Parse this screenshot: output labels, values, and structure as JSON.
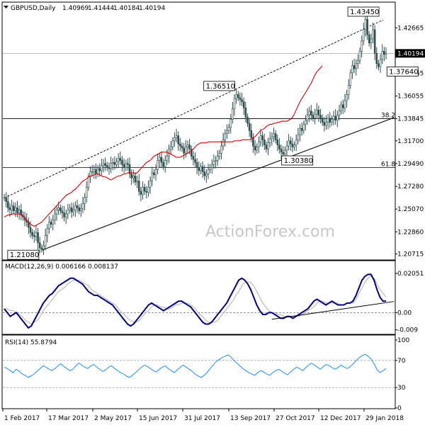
{
  "chart_data": [
    {
      "type": "candlestick",
      "title": "GBPUSD,Daily",
      "ohlc": [
        "1.40969",
        "1.41444",
        "1.40184",
        "1.40194"
      ],
      "last_price": 1.40194,
      "last_price_label": "1.40194",
      "watermark": "ActionForex.com",
      "ylim": [
        1.202,
        1.44
      ],
      "y_ticks": [
        1.4267,
        1.3826,
        1.3605,
        1.3385,
        1.317,
        1.2949,
        1.2727,
        1.2507,
        1.2286,
        1.2072
      ],
      "y_tick_labels": [
        "1.42665",
        "1.38265",
        "1.36055",
        "1.33845",
        "1.31700",
        "1.29490",
        "1.27280",
        "1.25070",
        "1.22860",
        "1.20715"
      ],
      "x_tick_labels": [
        "1 Feb 2017",
        "17 Mar 2017",
        "2 May 2017",
        "15 Jun 2017",
        "31 Jul 2017",
        "13 Sep 2017",
        "27 Oct 2017",
        "12 Dec 2017",
        "29 Jan 2018"
      ],
      "close_series": [
        1.262,
        1.258,
        1.252,
        1.25,
        1.254,
        1.249,
        1.252,
        1.247,
        1.25,
        1.245,
        1.243,
        1.24,
        1.238,
        1.233,
        1.228,
        1.225,
        1.224,
        1.228,
        1.218,
        1.213,
        1.212,
        1.215,
        1.225,
        1.232,
        1.238,
        1.236,
        1.24,
        1.246,
        1.25,
        1.252,
        1.249,
        1.247,
        1.243,
        1.246,
        1.25,
        1.252,
        1.248,
        1.25,
        1.254,
        1.252,
        1.249,
        1.251,
        1.256,
        1.262,
        1.272,
        1.282,
        1.287,
        1.287,
        1.289,
        1.285,
        1.29,
        1.288,
        1.293,
        1.295,
        1.293,
        1.291,
        1.29,
        1.295,
        1.296,
        1.294,
        1.297,
        1.3,
        1.298,
        1.294,
        1.291,
        1.295,
        1.294,
        1.285,
        1.281,
        1.283,
        1.277,
        1.278,
        1.268,
        1.265,
        1.272,
        1.268,
        1.267,
        1.272,
        1.278,
        1.286,
        1.284,
        1.289,
        1.298,
        1.301,
        1.296,
        1.292,
        1.298,
        1.302,
        1.309,
        1.311,
        1.317,
        1.32,
        1.322,
        1.314,
        1.312,
        1.31,
        1.305,
        1.311,
        1.313,
        1.309,
        1.302,
        1.299,
        1.296,
        1.291,
        1.288,
        1.292,
        1.287,
        1.283,
        1.285,
        1.289,
        1.291,
        1.294,
        1.297,
        1.298,
        1.302,
        1.305,
        1.312,
        1.318,
        1.324,
        1.327,
        1.33,
        1.338,
        1.348,
        1.358,
        1.362,
        1.359,
        1.357,
        1.355,
        1.349,
        1.34,
        1.334,
        1.327,
        1.32,
        1.312,
        1.308,
        1.311,
        1.316,
        1.322,
        1.318,
        1.313,
        1.309,
        1.315,
        1.319,
        1.321,
        1.324,
        1.318,
        1.313,
        1.309,
        1.306,
        1.304,
        1.308,
        1.312,
        1.317,
        1.314,
        1.311,
        1.313,
        1.318,
        1.323,
        1.329,
        1.327,
        1.333,
        1.337,
        1.342,
        1.346,
        1.342,
        1.339,
        1.343,
        1.347,
        1.342,
        1.339,
        1.335,
        1.332,
        1.335,
        1.339,
        1.335,
        1.338,
        1.341,
        1.337,
        1.342,
        1.346,
        1.352,
        1.349,
        1.356,
        1.362,
        1.371,
        1.383,
        1.39,
        1.387,
        1.392,
        1.395,
        1.404,
        1.414,
        1.425,
        1.435,
        1.42,
        1.412,
        1.416,
        1.425,
        1.402,
        1.392,
        1.389,
        1.396,
        1.404,
        1.401,
        1.402
      ],
      "ma_series": [
        1.243,
        1.244,
        1.245,
        1.245,
        1.246,
        1.246,
        1.246,
        1.246,
        1.246,
        1.245,
        1.244,
        1.242,
        1.24,
        1.238,
        1.236,
        1.235,
        1.234,
        1.235,
        1.236,
        1.237,
        1.238,
        1.24,
        1.242,
        1.244,
        1.246,
        1.248,
        1.25,
        1.252,
        1.254,
        1.256,
        1.258,
        1.26,
        1.262,
        1.264,
        1.265,
        1.266,
        1.267,
        1.269,
        1.27,
        1.272,
        1.274,
        1.276,
        1.278,
        1.279,
        1.28,
        1.282,
        1.283,
        1.283,
        1.284,
        1.285,
        1.285,
        1.284,
        1.283,
        1.282,
        1.282,
        1.281,
        1.28,
        1.279,
        1.28,
        1.281,
        1.282,
        1.283,
        1.283,
        1.284,
        1.285,
        1.285,
        1.286,
        1.286,
        1.286,
        1.286,
        1.285,
        1.286,
        1.288,
        1.29,
        1.292,
        1.294,
        1.296,
        1.297,
        1.298,
        1.3,
        1.302,
        1.303,
        1.304,
        1.305,
        1.306,
        1.306,
        1.306,
        1.306,
        1.305,
        1.304,
        1.303,
        1.302,
        1.301,
        1.301,
        1.301,
        1.302,
        1.303,
        1.304,
        1.305,
        1.306,
        1.307,
        1.309,
        1.311,
        1.313,
        1.314,
        1.315,
        1.315,
        1.315,
        1.315,
        1.316,
        1.316,
        1.316,
        1.316,
        1.316,
        1.316,
        1.316,
        1.316,
        1.316,
        1.316,
        1.316,
        1.316,
        1.316,
        1.316,
        1.317,
        1.317,
        1.317,
        1.317,
        1.318,
        1.318,
        1.318,
        1.318,
        1.318,
        1.319,
        1.32,
        1.321,
        1.323,
        1.325,
        1.327,
        1.328,
        1.329,
        1.331,
        1.332,
        1.333,
        1.333,
        1.334,
        1.334,
        1.335,
        1.335,
        1.336,
        1.336,
        1.336,
        1.336,
        1.337,
        1.338,
        1.34,
        1.343,
        1.347,
        1.351,
        1.355,
        1.358,
        1.361,
        1.364,
        1.367,
        1.37,
        1.373,
        1.377,
        1.381,
        1.384,
        1.386,
        1.388,
        1.39
      ],
      "annotations": [
        {
          "label": "1.21080",
          "value": 1.2108
        },
        {
          "label": "1.36510",
          "value": 1.3651
        },
        {
          "label": "1.30380",
          "value": 1.3038
        },
        {
          "label": "1.43450",
          "value": 1.4345
        },
        {
          "label": "1.37640",
          "value": 1.3764
        }
      ],
      "fib_levels": [
        {
          "label": "38.2",
          "value": 1.3385
        },
        {
          "label": "61.8",
          "value": 1.291
        }
      ]
    },
    {
      "type": "line",
      "title": "MACD(12,26,9) 0.006166 0.008137",
      "ylim": [
        -0.011,
        0.022
      ],
      "y_ticks": [
        0.02051,
        0.0,
        -0.009
      ],
      "y_tick_labels": [
        "0.02051",
        "0.00",
        "-0.009"
      ],
      "macd": [
        0.002,
        0.0,
        -0.002,
        -0.001,
        0.0,
        -0.002,
        -0.004,
        -0.006,
        -0.008,
        -0.007,
        -0.004,
        -0.001,
        0.002,
        0.005,
        0.007,
        0.009,
        0.01,
        0.012,
        0.014,
        0.015,
        0.016,
        0.017,
        0.018,
        0.018,
        0.017,
        0.016,
        0.015,
        0.013,
        0.011,
        0.01,
        0.009,
        0.009,
        0.008,
        0.007,
        0.006,
        0.005,
        0.004,
        0.002,
        0.0,
        -0.002,
        -0.004,
        -0.006,
        -0.007,
        -0.006,
        -0.004,
        -0.002,
        0.0,
        0.002,
        0.004,
        0.005,
        0.004,
        0.003,
        0.002,
        0.001,
        0.002,
        0.003,
        0.004,
        0.005,
        0.006,
        0.006,
        0.005,
        0.004,
        0.003,
        0.001,
        -0.001,
        -0.003,
        -0.005,
        -0.006,
        -0.006,
        -0.005,
        -0.003,
        -0.001,
        0.001,
        0.003,
        0.005,
        0.008,
        0.011,
        0.014,
        0.017,
        0.018,
        0.017,
        0.015,
        0.012,
        0.008,
        0.004,
        0.001,
        -0.001,
        -0.001,
        0.0,
        0.0,
        -0.001,
        -0.002,
        -0.003,
        -0.003,
        -0.002,
        -0.002,
        -0.003,
        -0.002,
        -0.001,
        0.0,
        0.001,
        0.002,
        0.004,
        0.006,
        0.007,
        0.006,
        0.005,
        0.004,
        0.005,
        0.006,
        0.005,
        0.004,
        0.004,
        0.004,
        0.005,
        0.005,
        0.006,
        0.009,
        0.013,
        0.017,
        0.019,
        0.02,
        0.02,
        0.017,
        0.012,
        0.008,
        0.006,
        0.006
      ],
      "signal": [
        0.002,
        0.002,
        0.001,
        0.001,
        0.0,
        -0.001,
        -0.002,
        -0.004,
        -0.005,
        -0.006,
        -0.005,
        -0.004,
        -0.002,
        0.001,
        0.003,
        0.005,
        0.007,
        0.009,
        0.011,
        0.012,
        0.013,
        0.015,
        0.016,
        0.017,
        0.017,
        0.017,
        0.016,
        0.015,
        0.014,
        0.012,
        0.011,
        0.01,
        0.009,
        0.008,
        0.007,
        0.006,
        0.005,
        0.004,
        0.002,
        0.0,
        -0.001,
        -0.003,
        -0.004,
        -0.005,
        -0.005,
        -0.004,
        -0.002,
        0.0,
        0.001,
        0.003,
        0.004,
        0.004,
        0.003,
        0.003,
        0.002,
        0.002,
        0.003,
        0.004,
        0.004,
        0.005,
        0.005,
        0.005,
        0.004,
        0.003,
        0.001,
        -0.001,
        -0.002,
        -0.004,
        -0.005,
        -0.005,
        -0.005,
        -0.004,
        -0.002,
        0.0,
        0.002,
        0.004,
        0.006,
        0.009,
        0.011,
        0.014,
        0.016,
        0.016,
        0.016,
        0.014,
        0.011,
        0.008,
        0.005,
        0.003,
        0.001,
        0.0,
        0.0,
        -0.001,
        -0.001,
        -0.002,
        -0.002,
        -0.002,
        -0.002,
        -0.002,
        -0.002,
        -0.001,
        0.0,
        0.001,
        0.002,
        0.003,
        0.005,
        0.006,
        0.006,
        0.005,
        0.005,
        0.005,
        0.005,
        0.005,
        0.004,
        0.004,
        0.005,
        0.005,
        0.005,
        0.007,
        0.01,
        0.013,
        0.016,
        0.018,
        0.019,
        0.018,
        0.015,
        0.012,
        0.01,
        0.008
      ]
    },
    {
      "type": "line",
      "title": "RSI(14) 55.8794",
      "ylim": [
        0,
        100
      ],
      "y_ticks": [
        100,
        70,
        30,
        0
      ],
      "y_tick_labels": [
        "100",
        "70",
        "30",
        "0"
      ],
      "values": [
        60,
        58,
        55,
        52,
        57,
        54,
        50,
        48,
        45,
        47,
        50,
        54,
        58,
        62,
        60,
        57,
        55,
        58,
        62,
        65,
        61,
        58,
        55,
        57,
        62,
        66,
        63,
        60,
        58,
        62,
        64,
        60,
        57,
        54,
        56,
        60,
        62,
        58,
        55,
        52,
        50,
        47,
        45,
        48,
        52,
        56,
        60,
        63,
        61,
        58,
        55,
        53,
        57,
        60,
        62,
        58,
        55,
        52,
        56,
        60,
        63,
        60,
        57,
        54,
        50,
        47,
        45,
        48,
        52,
        58,
        63,
        68,
        71,
        74,
        76,
        78,
        75,
        70,
        66,
        62,
        58,
        55,
        52,
        50,
        48,
        52,
        55,
        53,
        50,
        48,
        52,
        55,
        57,
        54,
        51,
        49,
        53,
        57,
        60,
        58,
        55,
        59,
        63,
        66,
        63,
        60,
        57,
        61,
        64,
        62,
        59,
        57,
        60,
        63,
        60,
        58,
        61,
        65,
        70,
        74,
        77,
        79,
        76,
        72,
        65,
        56,
        52,
        55,
        58
      ]
    }
  ]
}
